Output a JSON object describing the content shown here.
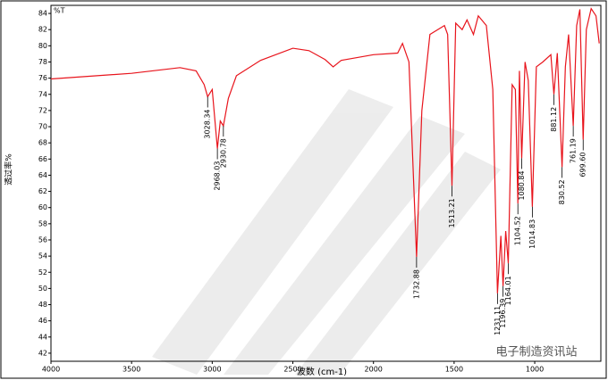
{
  "chart_data": {
    "type": "line",
    "title": "%T",
    "x_label": "波数 (cm-1)",
    "y_label": "透过率%",
    "watermark": "电子制造资讯站",
    "xlim": [
      4000,
      590
    ],
    "ylim": [
      41,
      85
    ],
    "xticks": [
      4000,
      3500,
      3000,
      2500,
      2000,
      1500,
      1000
    ],
    "yticks": [
      84,
      82,
      80,
      78,
      76,
      74,
      72,
      70,
      68,
      66,
      64,
      62,
      60,
      58,
      56,
      54,
      52,
      50,
      48,
      46,
      44,
      42
    ],
    "x": [
      4000,
      3500,
      3200,
      3100,
      3050,
      3028.34,
      3000,
      2968.03,
      2950,
      2930.78,
      2900,
      2850,
      2700,
      2500,
      2400,
      2300,
      2250,
      2200,
      2000,
      1850,
      1820,
      1780,
      1732.88,
      1700,
      1650,
      1560,
      1540,
      1513.21,
      1490,
      1450,
      1420,
      1380,
      1350,
      1300,
      1260,
      1231.11,
      1210,
      1196.39,
      1180,
      1164.01,
      1140,
      1120,
      1104.52,
      1095,
      1080.84,
      1060,
      1040,
      1014.83,
      990,
      950,
      900,
      881.12,
      860,
      830.52,
      810,
      790,
      761.19,
      740,
      720,
      699.6,
      680,
      650,
      620,
      600
    ],
    "series": [
      {
        "name": "%T",
        "color": "#e8141c",
        "values": [
          75.9,
          76.6,
          77.3,
          76.9,
          75.2,
          73.7,
          74.6,
          67.3,
          70.7,
          70.1,
          73.5,
          76.3,
          78.2,
          79.7,
          79.4,
          78.3,
          77.4,
          78.2,
          78.9,
          79.1,
          80.3,
          78.0,
          53.9,
          72.0,
          81.4,
          82.5,
          81.4,
          62.7,
          82.8,
          82.0,
          83.2,
          81.4,
          83.7,
          82.5,
          74.6,
          49.4,
          56.5,
          50.3,
          57.1,
          53.1,
          75.2,
          74.6,
          60.5,
          76.9,
          66.1,
          78.0,
          75.7,
          60.1,
          77.4,
          78.0,
          78.9,
          74.0,
          79.1,
          65.0,
          77.4,
          81.4,
          70.1,
          82.5,
          84.5,
          68.4,
          82.0,
          84.6,
          83.7,
          80.3
        ]
      }
    ],
    "peaks": [
      {
        "x": 3028.34,
        "y": 73.7,
        "label": "3028.34"
      },
      {
        "x": 2968.03,
        "y": 67.3,
        "label": "2968.03"
      },
      {
        "x": 2930.78,
        "y": 70.1,
        "label": "2930.78"
      },
      {
        "x": 1732.88,
        "y": 53.9,
        "label": "1732.88"
      },
      {
        "x": 1513.21,
        "y": 62.7,
        "label": "1513.21"
      },
      {
        "x": 1231.11,
        "y": 49.4,
        "label": "1231.11"
      },
      {
        "x": 1196.39,
        "y": 50.3,
        "label": "1196.39"
      },
      {
        "x": 1164.01,
        "y": 53.1,
        "label": "1164.01"
      },
      {
        "x": 1104.52,
        "y": 60.5,
        "label": "1104.52"
      },
      {
        "x": 1080.84,
        "y": 66.1,
        "label": "1080.84"
      },
      {
        "x": 1014.83,
        "y": 60.1,
        "label": "1014.83"
      },
      {
        "x": 881.12,
        "y": 74.0,
        "label": "881.12"
      },
      {
        "x": 830.52,
        "y": 65.0,
        "label": "830.52"
      },
      {
        "x": 761.19,
        "y": 70.1,
        "label": "761.19"
      },
      {
        "x": 699.6,
        "y": 68.4,
        "label": "699.60"
      }
    ]
  }
}
